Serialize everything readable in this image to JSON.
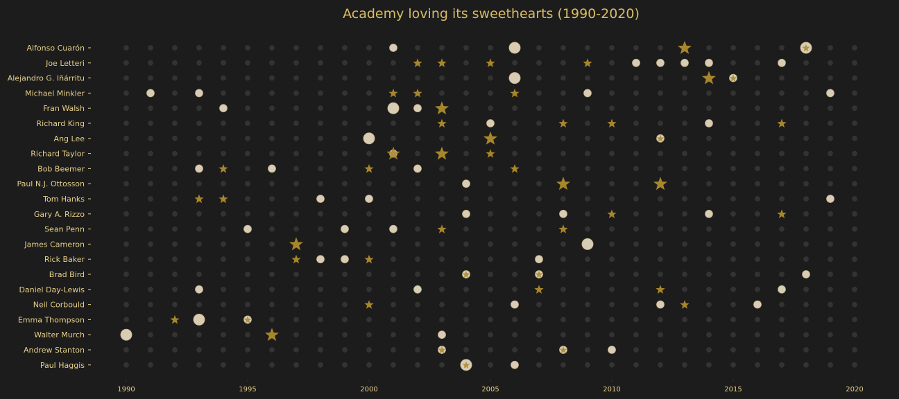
{
  "chart_data": {
    "type": "scatter",
    "title": "Academy loving its sweethearts (1990-2020)",
    "xlabel": "",
    "ylabel": "",
    "xlim": [
      1990,
      2020
    ],
    "x_ticks": [
      "1990",
      "1995",
      "2000",
      "2005",
      "2010",
      "2015",
      "2020"
    ],
    "grid": false,
    "marker_legend": {
      "circle": "win",
      "star": "nomination",
      "circle+star": "win and nomination in same year",
      "size": "count of entries in that year (1 or 2)"
    },
    "colors": {
      "background": "#1c1c1c",
      "empty_dot": "#333333",
      "win_fill": "#d8ccb4",
      "nomination_star": "#a8862a",
      "title": "#d9bc62",
      "labels": "#e6cf8a"
    },
    "people": [
      {
        "name": "Alfonso Cuarón",
        "wins": {
          "2001": 1,
          "2006": 2,
          "2018": 2
        },
        "nominations": {
          "2013": 2,
          "2018": 1
        }
      },
      {
        "name": "Joe Letteri",
        "wins": {
          "2011": 1,
          "2012": 1,
          "2013": 1,
          "2014": 1,
          "2017": 1
        },
        "nominations": {
          "2002": 1,
          "2003": 1,
          "2005": 1,
          "2009": 1
        }
      },
      {
        "name": "Alejandro G. Iñárritu",
        "wins": {
          "2006": 2,
          "2015": 1
        },
        "nominations": {
          "2014": 2,
          "2015": 1
        }
      },
      {
        "name": "Michael Minkler",
        "wins": {
          "1991": 1,
          "1993": 1,
          "2009": 1,
          "2019": 1
        },
        "nominations": {
          "2001": 1,
          "2002": 1,
          "2006": 1
        }
      },
      {
        "name": "Fran Walsh",
        "wins": {
          "1994": 1,
          "2001": 2,
          "2002": 1
        },
        "nominations": {
          "2003": 2
        }
      },
      {
        "name": "Richard King",
        "wins": {
          "2005": 1,
          "2014": 1
        },
        "nominations": {
          "2003": 1,
          "2008": 1,
          "2010": 1,
          "2017": 1
        }
      },
      {
        "name": "Ang Lee",
        "wins": {
          "2000": 2,
          "2012": 1
        },
        "nominations": {
          "2005": 2,
          "2012": 1
        }
      },
      {
        "name": "Richard Taylor",
        "wins": {
          "2001": 1
        },
        "nominations": {
          "2001": 2,
          "2003": 2,
          "2005": 1
        }
      },
      {
        "name": "Bob Beemer",
        "wins": {
          "1993": 1,
          "1996": 1,
          "2002": 1
        },
        "nominations": {
          "1994": 1,
          "2000": 1,
          "2006": 1
        }
      },
      {
        "name": "Paul N.J. Ottosson",
        "wins": {
          "2004": 1
        },
        "nominations": {
          "2008": 2,
          "2012": 2
        }
      },
      {
        "name": "Tom Hanks",
        "wins": {
          "1998": 1,
          "2000": 1,
          "2019": 1
        },
        "nominations": {
          "1993": 1,
          "1994": 1
        }
      },
      {
        "name": "Gary A. Rizzo",
        "wins": {
          "2004": 1,
          "2008": 1,
          "2014": 1
        },
        "nominations": {
          "2010": 1,
          "2017": 1
        }
      },
      {
        "name": "Sean Penn",
        "wins": {
          "1995": 1,
          "1999": 1,
          "2001": 1
        },
        "nominations": {
          "2003": 1,
          "2008": 1
        }
      },
      {
        "name": "James Cameron",
        "wins": {
          "2009": 2
        },
        "nominations": {
          "1997": 2
        }
      },
      {
        "name": "Rick Baker",
        "wins": {
          "1998": 1,
          "1999": 1,
          "2007": 1
        },
        "nominations": {
          "1997": 1,
          "2000": 1
        }
      },
      {
        "name": "Brad Bird",
        "wins": {
          "2004": 1,
          "2007": 1,
          "2018": 1
        },
        "nominations": {
          "2004": 1,
          "2007": 1
        }
      },
      {
        "name": "Daniel Day-Lewis",
        "wins": {
          "1993": 1,
          "2002": 1,
          "2017": 1
        },
        "nominations": {
          "2007": 1,
          "2012": 1
        }
      },
      {
        "name": "Neil Corbould",
        "wins": {
          "2006": 1,
          "2012": 1,
          "2016": 1
        },
        "nominations": {
          "2000": 1,
          "2013": 1
        }
      },
      {
        "name": "Emma Thompson",
        "wins": {
          "1993": 2,
          "1995": 1
        },
        "nominations": {
          "1992": 1,
          "1995": 1
        }
      },
      {
        "name": "Walter Murch",
        "wins": {
          "1990": 2,
          "2003": 1
        },
        "nominations": {
          "1996": 2
        }
      },
      {
        "name": "Andrew Stanton",
        "wins": {
          "2003": 1,
          "2008": 1,
          "2010": 1
        },
        "nominations": {
          "2003": 1,
          "2008": 1
        }
      },
      {
        "name": "Paul Haggis",
        "wins": {
          "2004": 2,
          "2006": 1
        },
        "nominations": {
          "2004": 1
        }
      }
    ]
  }
}
